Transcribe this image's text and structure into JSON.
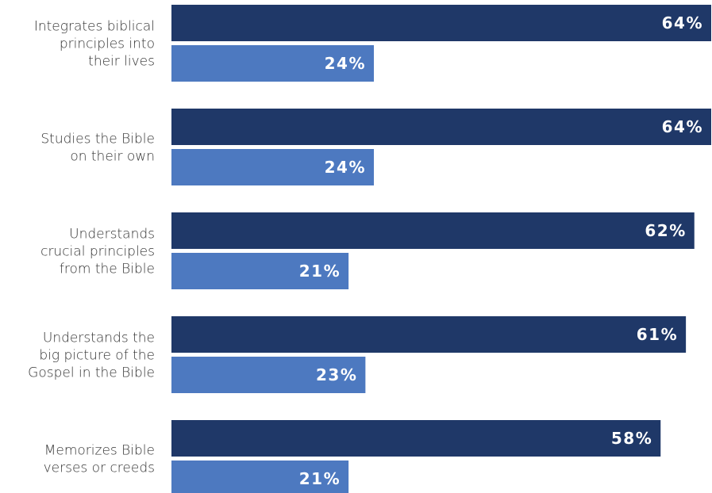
{
  "chart_data": {
    "type": "bar",
    "orientation": "horizontal",
    "categories": [
      [
        "Integrates biblical",
        "principles into",
        "their lives"
      ],
      [
        "Studies the Bible",
        "on their own"
      ],
      [
        "Understands",
        "crucial principles",
        "from the Bible"
      ],
      [
        "Understands the",
        "big picture of the",
        "Gospel in the Bible"
      ],
      [
        "Memorizes Bible",
        "verses or creeds"
      ]
    ],
    "series": [
      {
        "color": "#1f3868",
        "values": [
          64,
          64,
          62,
          61,
          58
        ],
        "labels": [
          "64%",
          "64%",
          "62%",
          "61%",
          "58%"
        ]
      },
      {
        "color": "#4d79c0",
        "values": [
          24,
          24,
          21,
          23,
          21
        ],
        "labels": [
          "24%",
          "24%",
          "21%",
          "23%",
          "21%"
        ]
      }
    ],
    "xlim": [
      0,
      64
    ],
    "grid": false,
    "legend": "none"
  }
}
